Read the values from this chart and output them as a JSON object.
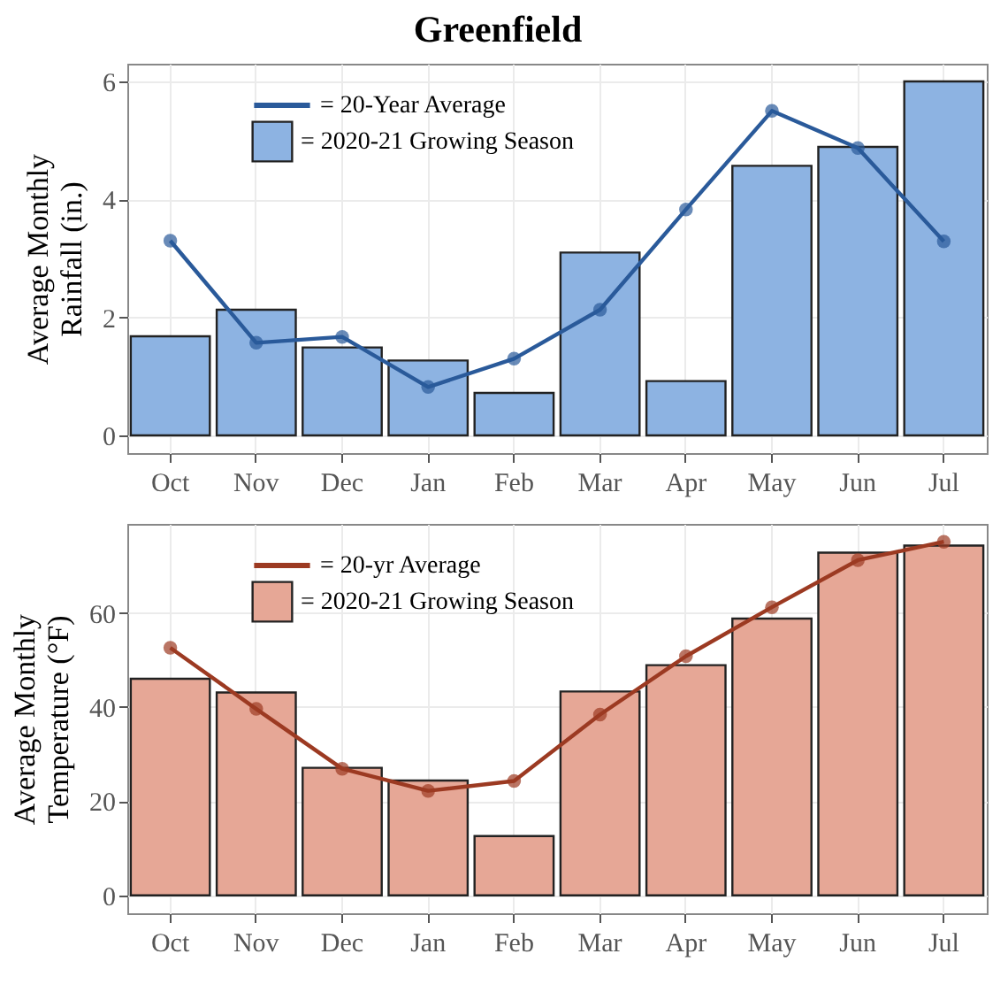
{
  "chart_data": [
    {
      "type": "bar",
      "title": "Greenfield",
      "ylabel": "Average Monthly Rainfall (in.)",
      "categories": [
        "Oct",
        "Nov",
        "Dec",
        "Jan",
        "Feb",
        "Mar",
        "Apr",
        "May",
        "Jun",
        "Jul"
      ],
      "ylim": [
        -0.3,
        6.3
      ],
      "yticks": [
        0,
        2,
        4,
        6
      ],
      "grid": true,
      "legend": "top left",
      "marker": "circle",
      "series": [
        {
          "name": "= 20-Year Average",
          "type": "line",
          "color": "#2a5a9a",
          "values": [
            3.3,
            1.57,
            1.67,
            0.82,
            1.3,
            2.13,
            3.83,
            5.5,
            4.87,
            3.29
          ]
        },
        {
          "name": "= 2020-21 Growing Season",
          "type": "bar",
          "color": "#8db3e2",
          "values": [
            1.68,
            2.13,
            1.49,
            1.27,
            0.72,
            3.1,
            0.92,
            4.57,
            4.89,
            6.0
          ]
        }
      ]
    },
    {
      "type": "bar",
      "ylabel": "Average Monthly Temperature (°F)",
      "categories": [
        "Oct",
        "Nov",
        "Dec",
        "Jan",
        "Feb",
        "Mar",
        "Apr",
        "May",
        "Jun",
        "Jul"
      ],
      "ylim": [
        -3.8,
        78.9
      ],
      "yticks": [
        0,
        20,
        40,
        60
      ],
      "grid": true,
      "legend": "top left",
      "marker": "circle",
      "series": [
        {
          "name": "= 20-yr Average",
          "type": "line",
          "color": "#9c3a22",
          "values": [
            52.6,
            39.6,
            26.9,
            22.2,
            24.3,
            38.4,
            50.8,
            61.2,
            71.2,
            75.1
          ]
        },
        {
          "name": "= 2020-21 Growing Season",
          "type": "bar",
          "color": "#e6a796",
          "values": [
            46.0,
            43.1,
            27.1,
            24.4,
            12.6,
            43.3,
            48.9,
            58.8,
            72.8,
            74.3
          ]
        }
      ]
    }
  ]
}
